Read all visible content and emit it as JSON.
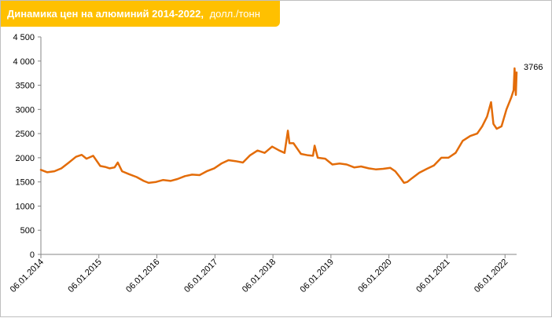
{
  "chart_data": {
    "type": "line",
    "title": "Динамика цен на алюминий 2014-2022,",
    "unit": "долл./тонн",
    "xlabel": "",
    "ylabel": "",
    "ylim": [
      0,
      4500
    ],
    "yticks": [
      0,
      500,
      1000,
      1500,
      2000,
      2500,
      3000,
      3500,
      4000,
      4500
    ],
    "ytick_labels": [
      "0",
      "500",
      "1000",
      "1500",
      "2000",
      "2500",
      "3000",
      "3500",
      "4 000",
      "4 500"
    ],
    "x_ticks": [
      "06.01.2014",
      "06.01.2015",
      "06.01.2016",
      "06.01.2017",
      "06.01.2018",
      "06.01.2019",
      "06.01.2020",
      "06.01.2021",
      "06.01.2022"
    ],
    "x_range": [
      "2014-01-06",
      "2022-03-20"
    ],
    "grid": false,
    "line_color": "#e36c09",
    "series": [
      {
        "name": "",
        "x": [
          "2014-01-06",
          "2014-02-15",
          "2014-04-01",
          "2014-05-15",
          "2014-07-01",
          "2014-08-15",
          "2014-09-20",
          "2014-10-20",
          "2014-12-01",
          "2015-01-15",
          "2015-02-15",
          "2015-03-15",
          "2015-04-15",
          "2015-05-05",
          "2015-06-01",
          "2015-07-15",
          "2015-09-01",
          "2015-10-15",
          "2015-11-15",
          "2016-01-01",
          "2016-02-15",
          "2016-04-01",
          "2016-05-15",
          "2016-07-01",
          "2016-08-15",
          "2016-10-01",
          "2016-11-15",
          "2017-01-01",
          "2017-02-15",
          "2017-04-01",
          "2017-05-15",
          "2017-07-01",
          "2017-08-15",
          "2017-10-01",
          "2017-11-15",
          "2018-01-01",
          "2018-02-15",
          "2018-03-20",
          "2018-04-10",
          "2018-04-20",
          "2018-05-15",
          "2018-07-01",
          "2018-08-15",
          "2018-09-15",
          "2018-09-25",
          "2018-10-15",
          "2018-12-01",
          "2019-01-15",
          "2019-03-01",
          "2019-04-15",
          "2019-06-01",
          "2019-07-15",
          "2019-09-01",
          "2019-10-15",
          "2019-12-01",
          "2020-01-15",
          "2020-02-15",
          "2020-03-15",
          "2020-04-10",
          "2020-05-01",
          "2020-06-01",
          "2020-07-15",
          "2020-09-01",
          "2020-10-15",
          "2020-12-01",
          "2021-01-15",
          "2021-03-01",
          "2021-04-15",
          "2021-06-01",
          "2021-07-15",
          "2021-08-15",
          "2021-09-15",
          "2021-10-10",
          "2021-10-25",
          "2021-11-15",
          "2021-12-15",
          "2022-01-15",
          "2022-02-15",
          "2022-03-01",
          "2022-03-07",
          "2022-03-15",
          "2022-03-20"
        ],
        "values": [
          1750,
          1700,
          1720,
          1780,
          1900,
          2020,
          2060,
          1980,
          2040,
          1830,
          1810,
          1780,
          1800,
          1900,
          1720,
          1660,
          1600,
          1520,
          1480,
          1500,
          1540,
          1520,
          1560,
          1620,
          1650,
          1640,
          1720,
          1780,
          1880,
          1950,
          1930,
          1900,
          2050,
          2150,
          2100,
          2230,
          2150,
          2100,
          2560,
          2300,
          2300,
          2080,
          2050,
          2040,
          2250,
          2000,
          1980,
          1860,
          1880,
          1860,
          1800,
          1820,
          1780,
          1760,
          1770,
          1790,
          1720,
          1600,
          1480,
          1500,
          1580,
          1690,
          1770,
          1840,
          2000,
          2000,
          2100,
          2350,
          2450,
          2500,
          2650,
          2850,
          3150,
          2700,
          2600,
          2650,
          3000,
          3250,
          3400,
          3850,
          3300,
          3766
        ]
      }
    ],
    "data_label": "3766"
  }
}
